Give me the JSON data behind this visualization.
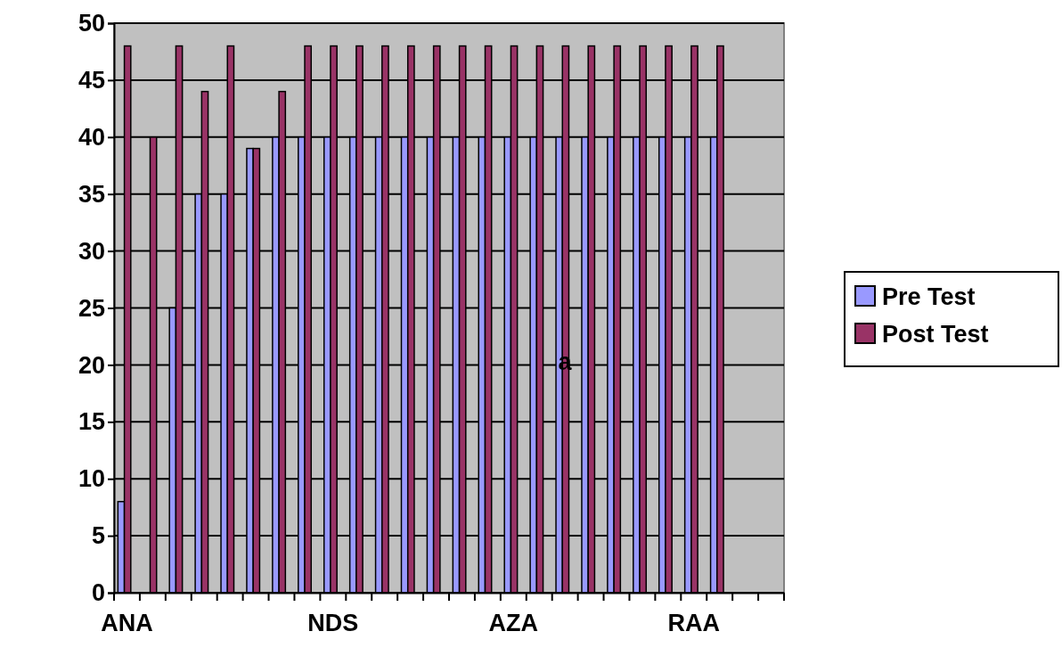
{
  "chart_data": {
    "type": "bar",
    "categories": [
      "ANA",
      null,
      null,
      null,
      null,
      null,
      null,
      null,
      "NDS",
      null,
      null,
      null,
      null,
      null,
      null,
      "AZA",
      null,
      null,
      null,
      null,
      null,
      null,
      "RAA",
      null,
      null,
      null
    ],
    "series": [
      {
        "name": "Pre Test",
        "color": "#9999ff",
        "values": [
          8,
          0,
          25,
          35,
          35,
          39,
          40,
          40,
          40,
          40,
          40,
          40,
          40,
          40,
          40,
          40,
          40,
          40,
          40,
          40,
          40,
          40,
          40,
          40,
          null,
          null
        ]
      },
      {
        "name": "Post Test",
        "color": "#993366",
        "values": [
          48,
          40,
          48,
          44,
          48,
          39,
          44,
          48,
          48,
          48,
          48,
          48,
          48,
          48,
          48,
          48,
          48,
          48,
          48,
          48,
          48,
          48,
          48,
          48,
          null,
          null
        ]
      }
    ],
    "ylim": [
      0,
      50
    ],
    "yticks": [
      0,
      5,
      10,
      15,
      20,
      25,
      30,
      35,
      40,
      45,
      50
    ],
    "grid": "y",
    "legend": "right",
    "annotations": [
      "a"
    ]
  }
}
